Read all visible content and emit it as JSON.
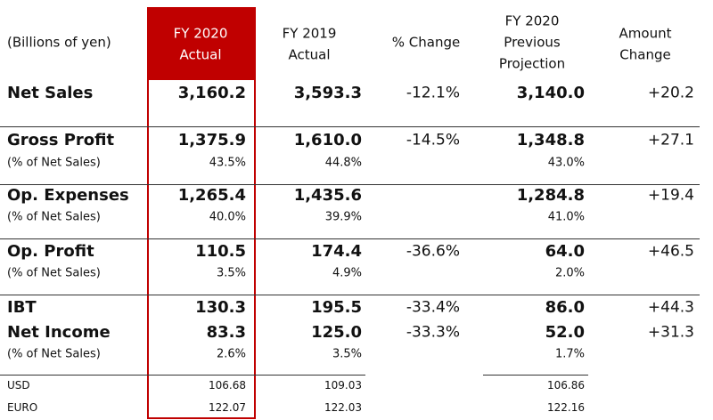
{
  "table": {
    "header": [
      [
        "(Billions of yen)"
      ],
      [
        "FY 2020",
        "Actual"
      ],
      [
        "FY 2019",
        "Actual"
      ],
      [
        "% Change"
      ],
      [
        "FY 2020",
        "Previous",
        "Projection"
      ],
      [
        "Amount",
        "Change"
      ]
    ],
    "rows": [
      [
        "Net Sales",
        "3,160.2",
        "3,593.3",
        "-12.1%",
        "3,140.0",
        "+20.2"
      ],
      [
        "Gross Profit",
        "1,375.9",
        "1,610.0",
        "-14.5%",
        "1,348.8",
        "+27.1"
      ],
      [
        "(% of Net Sales)",
        "43.5%",
        "44.8%",
        null,
        "43.0%",
        null
      ],
      [
        "Op. Expenses",
        "1,265.4",
        "1,435.6",
        null,
        "1,284.8",
        "+19.4"
      ],
      [
        "(% of Net Sales)",
        "40.0%",
        "39.9%",
        null,
        "41.0%",
        null
      ],
      [
        "Op. Profit",
        "110.5",
        "174.4",
        "-36.6%",
        "64.0",
        "+46.5"
      ],
      [
        "(% of Net Sales)",
        "3.5%",
        "4.9%",
        null,
        "2.0%",
        null
      ],
      [
        "IBT",
        "130.3",
        "195.5",
        "-33.4%",
        "86.0",
        "+44.3"
      ],
      [
        "Net Income",
        "83.3",
        "125.0",
        "-33.3%",
        "52.0",
        "+31.3"
      ],
      [
        "(% of Net Sales)",
        "2.6%",
        "3.5%",
        null,
        "1.7%",
        null
      ],
      [
        "USD",
        "106.68",
        "109.03",
        null,
        "106.86",
        null
      ],
      [
        "EURO",
        "122.07",
        "122.03",
        null,
        "122.16",
        null
      ]
    ]
  }
}
